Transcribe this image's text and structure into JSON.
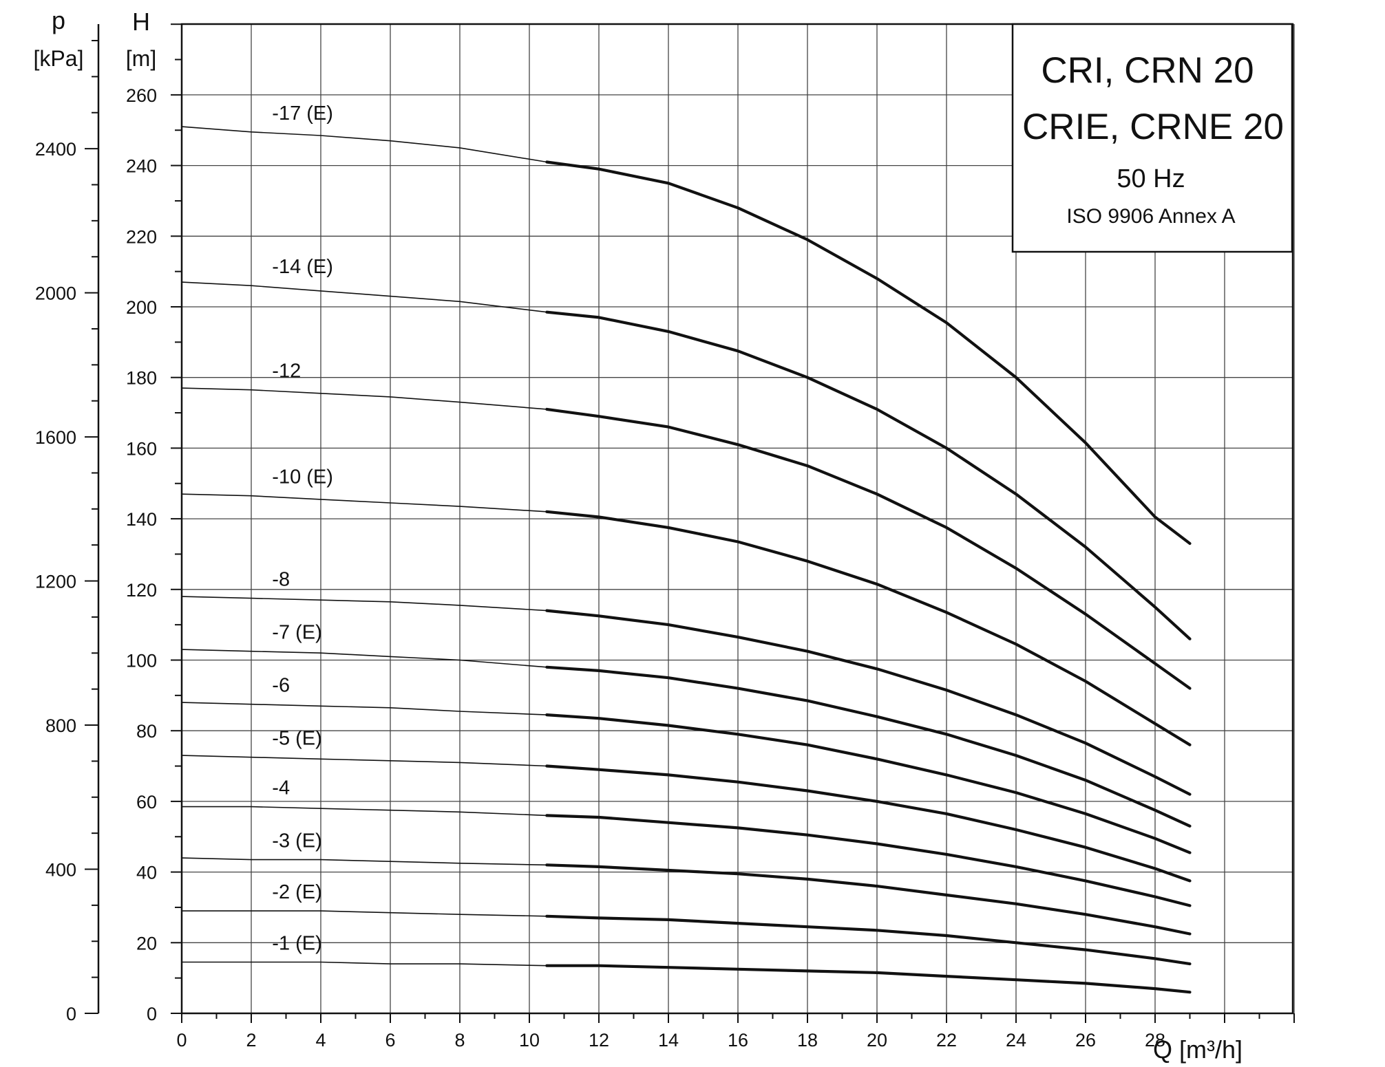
{
  "chart_data": {
    "type": "line",
    "x_axis": {
      "label": "Q [m³/h]",
      "range": [
        0,
        32
      ],
      "ticks": [
        0,
        2,
        4,
        6,
        8,
        10,
        12,
        14,
        16,
        18,
        20,
        22,
        24,
        26,
        28
      ]
    },
    "y_axis": {
      "label": "H",
      "unit": "[m]",
      "range": [
        0,
        280
      ],
      "ticks": [
        0,
        20,
        40,
        60,
        80,
        100,
        120,
        140,
        160,
        180,
        200,
        220,
        240,
        260
      ]
    },
    "secondary_y_axis": {
      "label": "p",
      "unit": "[kPa]",
      "range": [
        0,
        2750
      ],
      "ticks": [
        0,
        400,
        800,
        1200,
        1600,
        2000,
        2400
      ]
    },
    "grid": true,
    "legend_box": {
      "title": "CRI, CRN 20",
      "subtitle": "CRIE, CRNE 20",
      "frequency": "50 Hz",
      "standard": "ISO 9906 Annex A",
      "placement": "top-right"
    },
    "series": [
      {
        "name": "-17 (E)",
        "thin": {
          "x": [
            0,
            2,
            4,
            6,
            8,
            10.5
          ],
          "y": [
            251,
            249.5,
            248.5,
            247,
            245,
            241
          ]
        },
        "thick": {
          "x": [
            10.5,
            12,
            14,
            16,
            18,
            20,
            22,
            24,
            26,
            28,
            29
          ],
          "y": [
            241,
            239,
            235,
            228,
            219,
            208,
            195.5,
            180,
            161.5,
            140.5,
            133
          ]
        }
      },
      {
        "name": "-14 (E)",
        "thin": {
          "x": [
            0,
            2,
            4,
            6,
            8,
            10.5
          ],
          "y": [
            207,
            206,
            204.5,
            203,
            201.5,
            198.5
          ]
        },
        "thick": {
          "x": [
            10.5,
            12,
            14,
            16,
            18,
            20,
            22,
            24,
            26,
            28,
            29
          ],
          "y": [
            198.5,
            197,
            193,
            187.5,
            180,
            171,
            160,
            147,
            132,
            115,
            106
          ]
        }
      },
      {
        "name": "-12",
        "thin": {
          "x": [
            0,
            2,
            4,
            6,
            8,
            10.5
          ],
          "y": [
            177,
            176.5,
            175.5,
            174.5,
            173,
            171
          ]
        },
        "thick": {
          "x": [
            10.5,
            12,
            14,
            16,
            18,
            20,
            22,
            24,
            26,
            28,
            29
          ],
          "y": [
            171,
            169,
            166,
            161,
            155,
            147,
            137.5,
            126,
            113,
            99,
            92
          ]
        }
      },
      {
        "name": "-10 (E)",
        "thin": {
          "x": [
            0,
            2,
            4,
            6,
            8,
            10.5
          ],
          "y": [
            147,
            146.5,
            145.5,
            144.5,
            143.5,
            142
          ]
        },
        "thick": {
          "x": [
            10.5,
            12,
            14,
            16,
            18,
            20,
            22,
            24,
            26,
            28,
            29
          ],
          "y": [
            142,
            140.5,
            137.5,
            133.5,
            128,
            121.5,
            113.5,
            104.5,
            94,
            82,
            76
          ]
        }
      },
      {
        "name": "-8",
        "thin": {
          "x": [
            0,
            2,
            4,
            6,
            8,
            10.5
          ],
          "y": [
            118,
            117.5,
            117,
            116.5,
            115.5,
            114
          ]
        },
        "thick": {
          "x": [
            10.5,
            12,
            14,
            16,
            18,
            20,
            22,
            24,
            26,
            28,
            29
          ],
          "y": [
            114,
            112.5,
            110,
            106.5,
            102.5,
            97.5,
            91.5,
            84.5,
            76.5,
            67,
            62
          ]
        }
      },
      {
        "name": "-7 (E)",
        "thin": {
          "x": [
            0,
            2,
            4,
            6,
            8,
            10.5
          ],
          "y": [
            103,
            102.5,
            102,
            101,
            100,
            98
          ]
        },
        "thick": {
          "x": [
            10.5,
            12,
            14,
            16,
            18,
            20,
            22,
            24,
            26,
            28,
            29
          ],
          "y": [
            98,
            97,
            95,
            92,
            88.5,
            84,
            79,
            73,
            66,
            57.5,
            53
          ]
        }
      },
      {
        "name": "-6",
        "thin": {
          "x": [
            0,
            2,
            4,
            6,
            8,
            10.5
          ],
          "y": [
            88,
            87.5,
            87,
            86.5,
            85.5,
            84.5
          ]
        },
        "thick": {
          "x": [
            10.5,
            12,
            14,
            16,
            18,
            20,
            22,
            24,
            26,
            28,
            29
          ],
          "y": [
            84.5,
            83.5,
            81.5,
            79,
            76,
            72,
            67.5,
            62.5,
            56.5,
            49.5,
            45.5
          ]
        }
      },
      {
        "name": "-5 (E)",
        "thin": {
          "x": [
            0,
            2,
            4,
            6,
            8,
            10.5
          ],
          "y": [
            73,
            72.5,
            72,
            71.5,
            71,
            70
          ]
        },
        "thick": {
          "x": [
            10.5,
            12,
            14,
            16,
            18,
            20,
            22,
            24,
            26,
            28,
            29
          ],
          "y": [
            70,
            69,
            67.5,
            65.5,
            63,
            60,
            56.5,
            52,
            47,
            41,
            37.5
          ]
        }
      },
      {
        "name": "-4",
        "thin": {
          "x": [
            0,
            2,
            4,
            6,
            8,
            10.5
          ],
          "y": [
            58.5,
            58.5,
            58,
            57.5,
            57,
            56
          ]
        },
        "thick": {
          "x": [
            10.5,
            12,
            14,
            16,
            18,
            20,
            22,
            24,
            26,
            28,
            29
          ],
          "y": [
            56,
            55.5,
            54,
            52.5,
            50.5,
            48,
            45,
            41.5,
            37.5,
            33,
            30.5
          ]
        }
      },
      {
        "name": "-3 (E)",
        "thin": {
          "x": [
            0,
            2,
            4,
            6,
            8,
            10.5
          ],
          "y": [
            44,
            43.5,
            43.5,
            43,
            42.5,
            42
          ]
        },
        "thick": {
          "x": [
            10.5,
            12,
            14,
            16,
            18,
            20,
            22,
            24,
            26,
            28,
            29
          ],
          "y": [
            42,
            41.5,
            40.5,
            39.5,
            38,
            36,
            33.5,
            31,
            28,
            24.5,
            22.5
          ]
        }
      },
      {
        "name": "-2 (E)",
        "thin": {
          "x": [
            0,
            2,
            4,
            6,
            8,
            10.5
          ],
          "y": [
            29,
            29,
            29,
            28.5,
            28,
            27.5
          ]
        },
        "thick": {
          "x": [
            10.5,
            12,
            14,
            16,
            18,
            20,
            22,
            24,
            26,
            28,
            29
          ],
          "y": [
            27.5,
            27,
            26.5,
            25.5,
            24.5,
            23.5,
            22,
            20,
            18,
            15.5,
            14
          ]
        }
      },
      {
        "name": "-1 (E)",
        "thin": {
          "x": [
            0,
            2,
            4,
            6,
            8,
            10.5
          ],
          "y": [
            14.5,
            14.5,
            14.5,
            14,
            14,
            13.5
          ]
        },
        "thick": {
          "x": [
            10.5,
            12,
            14,
            16,
            18,
            20,
            22,
            24,
            26,
            28,
            29
          ],
          "y": [
            13.5,
            13.5,
            13,
            12.5,
            12,
            11.5,
            10.5,
            9.5,
            8.5,
            7,
            6
          ]
        }
      }
    ]
  }
}
